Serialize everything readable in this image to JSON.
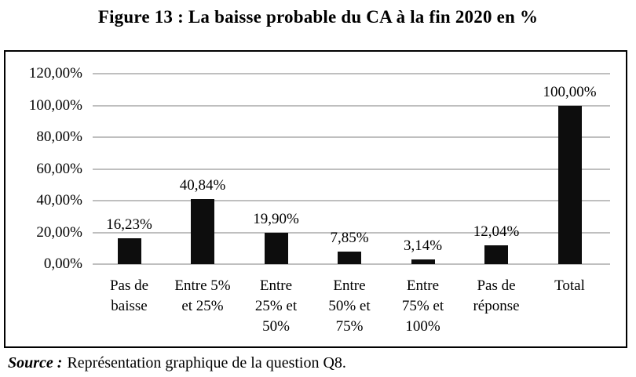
{
  "figure": {
    "title": "Figure 13 : La baisse probable du CA à la fin 2020 en %",
    "source_label": "Source :",
    "source_text": "Représentation graphique de la question Q8."
  },
  "chart_data": {
    "type": "bar",
    "title": "Figure 13 : La baisse probable du CA à la fin 2020 en %",
    "xlabel": "",
    "ylabel": "",
    "categories": [
      "Pas de baisse",
      "Entre 5% et 25%",
      "Entre 25% et 50%",
      "Entre 50% et 75%",
      "Entre 75% et 100%",
      "Pas de réponse",
      "Total"
    ],
    "category_lines": [
      [
        "Pas de",
        "baisse"
      ],
      [
        "Entre 5%",
        "et 25%"
      ],
      [
        "Entre",
        "25% et",
        "50%"
      ],
      [
        "Entre",
        "50% et",
        "75%"
      ],
      [
        "Entre",
        "75% et",
        "100%"
      ],
      [
        "Pas de",
        "réponse"
      ],
      [
        "Total"
      ]
    ],
    "values": [
      16.23,
      40.84,
      19.9,
      7.85,
      3.14,
      12.04,
      100.0
    ],
    "value_labels": [
      "16,23%",
      "40,84%",
      "19,90%",
      "7,85%",
      "3,14%",
      "12,04%",
      "100,00%"
    ],
    "y_ticks": [
      {
        "label": "120,00%",
        "value": 120
      },
      {
        "label": "100,00%",
        "value": 100
      },
      {
        "label": "80,00%",
        "value": 80
      },
      {
        "label": "60,00%",
        "value": 60
      },
      {
        "label": "40,00%",
        "value": 40
      },
      {
        "label": "20,00%",
        "value": 20
      },
      {
        "label": "0,00%",
        "value": 0
      }
    ],
    "ylim": [
      0,
      120
    ],
    "grid": true,
    "legend": "none",
    "bar_color": "#0d0d0d",
    "gridline_color": "#bfbfbf",
    "frame_color": "#000000"
  }
}
